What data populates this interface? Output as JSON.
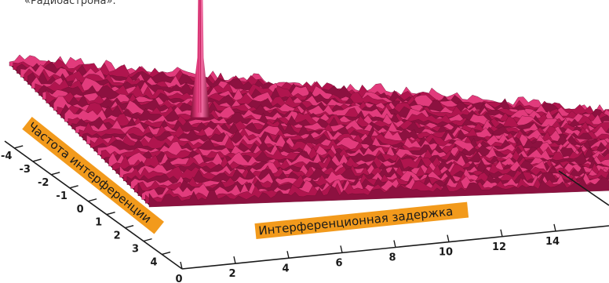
{
  "caption": "«Радиоастрона».",
  "chart_data": {
    "type": "surface",
    "xlabel": "Интерференционная задержка",
    "ylabel": "Частота интерференции",
    "x_ticks": [
      0,
      2,
      4,
      6,
      8,
      10,
      12,
      14
    ],
    "y_ticks": [
      -4,
      -3,
      -2,
      -1,
      0,
      1,
      2,
      3,
      4
    ],
    "xlim": [
      0,
      16
    ],
    "ylim": [
      -5,
      5
    ],
    "peak": {
      "x": 4.2,
      "y": -5
    },
    "colors": {
      "surface": "#b0154e",
      "surface_light": "#e23b7c",
      "surface_dark": "#5a0a26",
      "label_bg": "#f29a1c",
      "axis": "#1a1a1a"
    }
  }
}
